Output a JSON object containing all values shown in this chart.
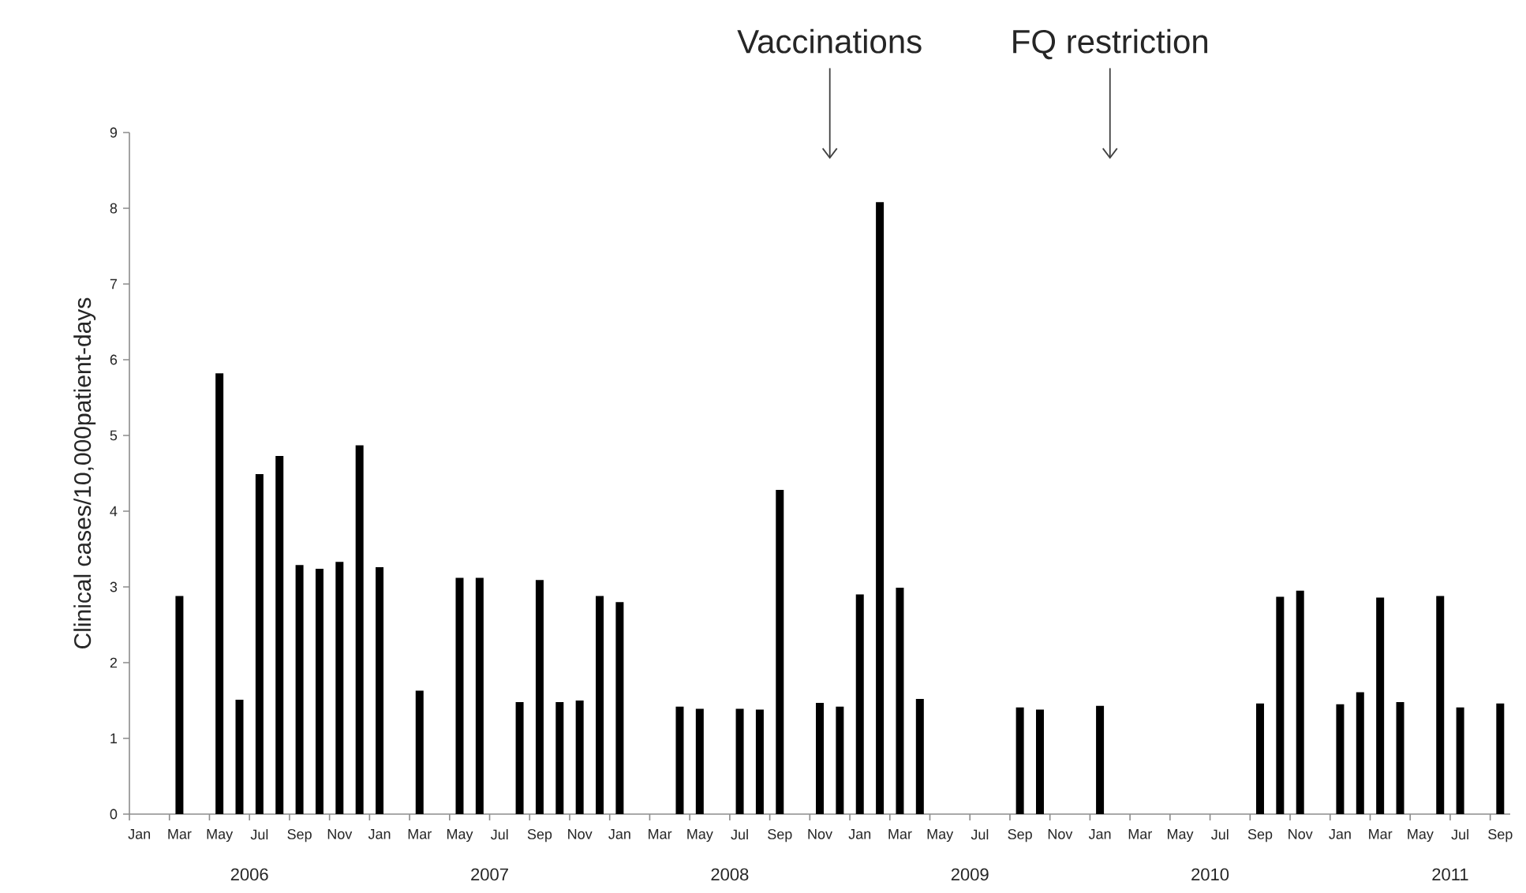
{
  "chart_data": {
    "type": "bar",
    "ylabel": "Clinical cases/10,000patient-days",
    "color": "#000000",
    "ylim": [
      0,
      9
    ],
    "yticks": [
      0,
      1,
      2,
      3,
      4,
      5,
      6,
      7,
      8,
      9
    ],
    "categories": [
      "Jan",
      null,
      "Mar",
      null,
      "May",
      null,
      "Jul",
      null,
      "Sep",
      null,
      "Nov",
      null,
      "Jan",
      null,
      "Mar",
      null,
      "May",
      null,
      "Jul",
      null,
      "Sep",
      null,
      "Nov",
      null,
      "Jan",
      null,
      "Mar",
      null,
      "May",
      null,
      "Jul",
      null,
      "Sep",
      null,
      "Nov",
      null,
      "Jan",
      null,
      "Mar",
      null,
      "May",
      null,
      "Jul",
      null,
      "Sep",
      null,
      "Nov",
      null,
      "Jan",
      null,
      "Mar",
      null,
      "May",
      null,
      "Jul",
      null,
      "Sep",
      null,
      "Nov",
      null,
      "Jan",
      null,
      "Mar",
      null,
      "May",
      null,
      "Jul",
      null,
      "Sep"
    ],
    "values": [
      0,
      0,
      2.88,
      0,
      5.82,
      1.51,
      4.49,
      4.73,
      3.29,
      3.24,
      3.33,
      4.87,
      3.26,
      0,
      1.63,
      0,
      3.12,
      3.12,
      0,
      1.48,
      3.09,
      1.48,
      1.5,
      2.88,
      2.8,
      0,
      0,
      1.42,
      1.39,
      0,
      1.39,
      1.38,
      4.28,
      0,
      1.47,
      1.42,
      2.9,
      8.08,
      2.99,
      1.52,
      0,
      0,
      0,
      0,
      1.41,
      1.38,
      0,
      0,
      1.43,
      0,
      0,
      0,
      0,
      0,
      0,
      0,
      1.46,
      2.87,
      2.95,
      0,
      1.45,
      1.61,
      2.86,
      1.48,
      0,
      2.88,
      1.41,
      0,
      1.46
    ],
    "annotations": [
      "Vaccinations",
      "FQ restriction",
      "2006",
      "2007",
      "2008",
      "2009",
      "2010",
      "2011"
    ]
  }
}
